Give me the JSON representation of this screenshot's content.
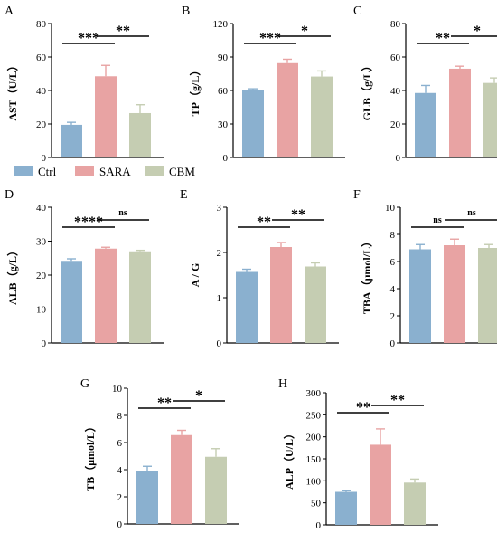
{
  "colors": {
    "Ctrl": "#8ab0cf",
    "SARA": "#e8a3a3",
    "CBM": "#c5cdb2",
    "axis": "#000000"
  },
  "legend": {
    "items": [
      "Ctrl",
      "SARA",
      "CBM"
    ]
  },
  "chart_data": [
    {
      "panel": "A",
      "type": "bar",
      "ylabel": "AST（U/L）",
      "ylim": [
        0,
        80
      ],
      "yticks": [
        0,
        20,
        40,
        60,
        80
      ],
      "series": [
        {
          "name": "Ctrl",
          "value": 19.5,
          "error": 1.5
        },
        {
          "name": "SARA",
          "value": 48.5,
          "error": 6.5
        },
        {
          "name": "CBM",
          "value": 26.5,
          "error": 5
        }
      ],
      "significance": [
        {
          "groups": [
            "Ctrl",
            "SARA"
          ],
          "label": "***"
        },
        {
          "groups": [
            "SARA",
            "CBM"
          ],
          "label": "**"
        }
      ]
    },
    {
      "panel": "B",
      "type": "bar",
      "ylabel": "TP（g/L）",
      "ylim": [
        0,
        120
      ],
      "yticks": [
        0,
        30,
        60,
        90,
        120
      ],
      "series": [
        {
          "name": "Ctrl",
          "value": 60,
          "error": 1.5
        },
        {
          "name": "SARA",
          "value": 84.5,
          "error": 3.5
        },
        {
          "name": "CBM",
          "value": 72.5,
          "error": 5
        }
      ],
      "significance": [
        {
          "groups": [
            "Ctrl",
            "SARA"
          ],
          "label": "***"
        },
        {
          "groups": [
            "SARA",
            "CBM"
          ],
          "label": "*"
        }
      ]
    },
    {
      "panel": "C",
      "type": "bar",
      "ylabel": "GLB（g/L）",
      "ylim": [
        0,
        80
      ],
      "yticks": [
        0,
        20,
        40,
        60,
        80
      ],
      "series": [
        {
          "name": "Ctrl",
          "value": 38.5,
          "error": 4.5
        },
        {
          "name": "SARA",
          "value": 53,
          "error": 1.5
        },
        {
          "name": "CBM",
          "value": 44.5,
          "error": 3
        }
      ],
      "significance": [
        {
          "groups": [
            "Ctrl",
            "SARA"
          ],
          "label": "**"
        },
        {
          "groups": [
            "SARA",
            "CBM"
          ],
          "label": "*"
        }
      ]
    },
    {
      "panel": "D",
      "type": "bar",
      "ylabel": "ALB（g/L）",
      "ylim": [
        0,
        40
      ],
      "yticks": [
        0,
        10,
        20,
        30,
        40
      ],
      "series": [
        {
          "name": "Ctrl",
          "value": 24.2,
          "error": 0.6
        },
        {
          "name": "SARA",
          "value": 27.8,
          "error": 0.4
        },
        {
          "name": "CBM",
          "value": 27,
          "error": 0.3
        }
      ],
      "significance": [
        {
          "groups": [
            "Ctrl",
            "SARA"
          ],
          "label": "****"
        },
        {
          "groups": [
            "SARA",
            "CBM"
          ],
          "label": "ns"
        }
      ]
    },
    {
      "panel": "E",
      "type": "bar",
      "ylabel": "A / G",
      "ylim": [
        0,
        3
      ],
      "yticks": [
        0,
        1,
        2,
        3
      ],
      "series": [
        {
          "name": "Ctrl",
          "value": 1.57,
          "error": 0.06
        },
        {
          "name": "SARA",
          "value": 2.12,
          "error": 0.1
        },
        {
          "name": "CBM",
          "value": 1.69,
          "error": 0.08
        }
      ],
      "significance": [
        {
          "groups": [
            "Ctrl",
            "SARA"
          ],
          "label": "**"
        },
        {
          "groups": [
            "SARA",
            "CBM"
          ],
          "label": "**"
        }
      ]
    },
    {
      "panel": "F",
      "type": "bar",
      "ylabel": "TBA（μmol/L）",
      "ylim": [
        0,
        10
      ],
      "yticks": [
        0,
        2,
        4,
        6,
        8,
        10
      ],
      "series": [
        {
          "name": "Ctrl",
          "value": 6.9,
          "error": 0.35
        },
        {
          "name": "SARA",
          "value": 7.2,
          "error": 0.45
        },
        {
          "name": "CBM",
          "value": 7.0,
          "error": 0.25
        }
      ],
      "significance": [
        {
          "groups": [
            "Ctrl",
            "SARA"
          ],
          "label": "ns"
        },
        {
          "groups": [
            "SARA",
            "CBM"
          ],
          "label": "ns"
        }
      ]
    },
    {
      "panel": "G",
      "type": "bar",
      "ylabel": "TB（μmol/L）",
      "ylim": [
        0,
        10
      ],
      "yticks": [
        0,
        2,
        4,
        6,
        8,
        10
      ],
      "series": [
        {
          "name": "Ctrl",
          "value": 3.9,
          "error": 0.35
        },
        {
          "name": "SARA",
          "value": 6.55,
          "error": 0.35
        },
        {
          "name": "CBM",
          "value": 4.95,
          "error": 0.6
        }
      ],
      "significance": [
        {
          "groups": [
            "Ctrl",
            "SARA"
          ],
          "label": "**"
        },
        {
          "groups": [
            "SARA",
            "CBM"
          ],
          "label": "*"
        }
      ]
    },
    {
      "panel": "H",
      "type": "bar",
      "ylabel": "ALP（U/L）",
      "ylim": [
        0,
        300
      ],
      "yticks": [
        0,
        50,
        100,
        150,
        200,
        250,
        300
      ],
      "series": [
        {
          "name": "Ctrl",
          "value": 75,
          "error": 2.5
        },
        {
          "name": "SARA",
          "value": 182,
          "error": 36
        },
        {
          "name": "CBM",
          "value": 96,
          "error": 8
        }
      ],
      "significance": [
        {
          "groups": [
            "Ctrl",
            "SARA"
          ],
          "label": "**"
        },
        {
          "groups": [
            "SARA",
            "CBM"
          ],
          "label": "**"
        }
      ]
    }
  ]
}
